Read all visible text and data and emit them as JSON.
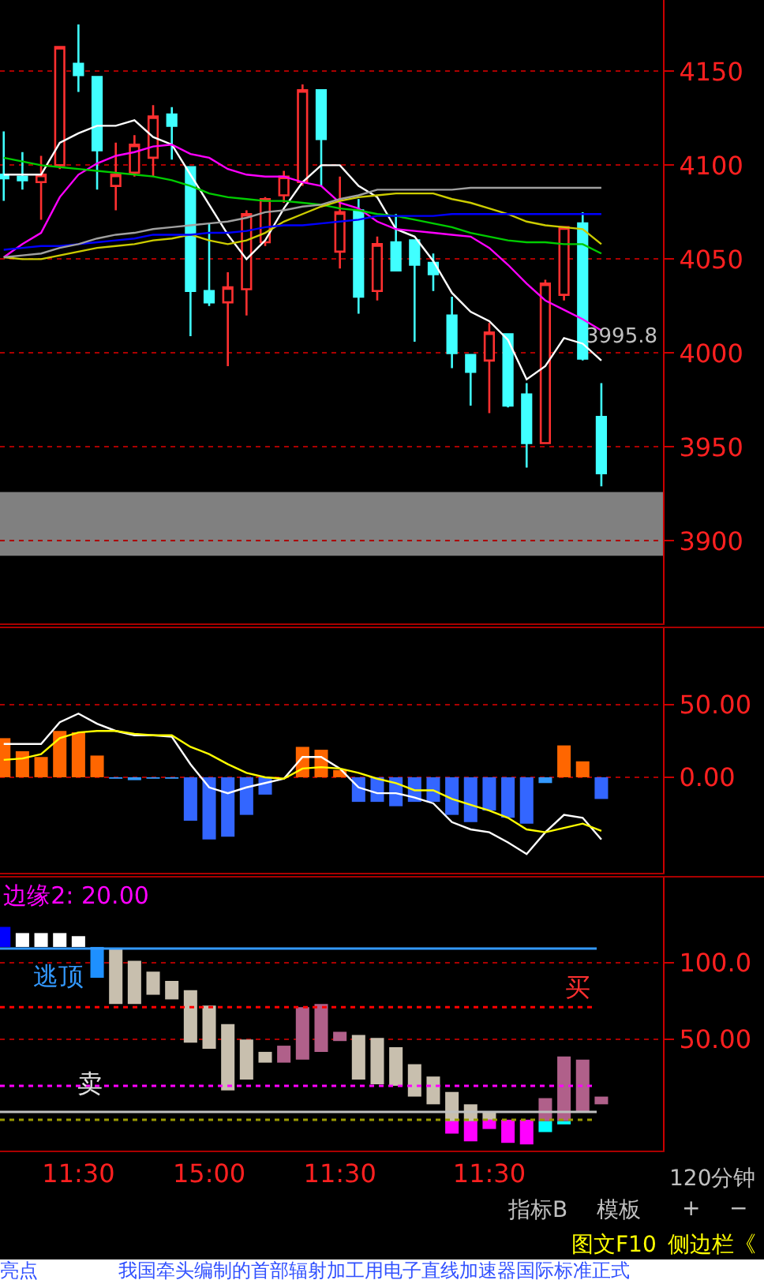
{
  "chart_data": [
    {
      "type": "candlestick",
      "categories": [
        null,
        null,
        null,
        null,
        null,
        null,
        null,
        null,
        null,
        null,
        null,
        null,
        null,
        null,
        null,
        null,
        null,
        null,
        null,
        null,
        null,
        null,
        null,
        null,
        null,
        null,
        null,
        null,
        null,
        null,
        null,
        null,
        null
      ],
      "ohlc": [
        [
          4095,
          4118,
          4081,
          4093
        ],
        [
          4094,
          4107,
          4087,
          4092
        ],
        [
          4091,
          4105,
          4071,
          4095
        ],
        [
          4100,
          4163,
          4098,
          4163
        ],
        [
          4154,
          4175,
          4139,
          4148
        ],
        [
          4147,
          4147,
          4087,
          4108
        ],
        [
          4089,
          4112,
          4076,
          4095
        ],
        [
          4096,
          4116,
          4094,
          4111
        ],
        [
          4104,
          4132,
          4094,
          4126
        ],
        [
          4127,
          4131,
          4103,
          4121
        ],
        [
          4099,
          4099,
          4009,
          4033
        ],
        [
          4033,
          4069,
          4025,
          4027
        ],
        [
          4027,
          4043,
          3993,
          4035
        ],
        [
          4034,
          4076,
          4020,
          4074
        ],
        [
          4059,
          4083,
          4057,
          4082
        ],
        [
          4084,
          4097,
          4080,
          4094
        ],
        [
          4091,
          4143,
          4089,
          4140
        ],
        [
          4140,
          4140,
          4089,
          4114
        ],
        [
          4054,
          4094,
          4045,
          4075
        ],
        [
          4076,
          4082,
          4021,
          4030
        ],
        [
          4033,
          4062,
          4028,
          4058
        ],
        [
          4059,
          4074,
          4044,
          4044
        ],
        [
          4060,
          4060,
          4006,
          4047
        ],
        [
          4048,
          4053,
          4033,
          4042
        ],
        [
          4020,
          4030,
          3992,
          4000
        ],
        [
          3999,
          3999,
          3972,
          3990
        ],
        [
          3996,
          4016,
          3968,
          4011
        ],
        [
          4010,
          4010,
          3971,
          3972
        ],
        [
          3978,
          3984,
          3939,
          3952
        ],
        [
          3952,
          4039,
          3952,
          4037
        ],
        [
          4031,
          4067,
          4028,
          4067
        ],
        [
          4069,
          4075,
          3996,
          3997
        ],
        [
          3966,
          3984,
          3929,
          3936
        ]
      ],
      "series": [
        {
          "type": "line",
          "color": "#ffffff",
          "values": [
            4095,
            4095,
            4095,
            4112,
            4117,
            4121,
            4121,
            4124,
            4115,
            4111,
            4095,
            4079,
            4063,
            4050,
            4060,
            4077,
            4091,
            4100,
            4100,
            4089,
            4083,
            4066,
            4062,
            4049,
            4032,
            4022,
            4017,
            4007,
            3986,
            3993,
            4008,
            4005,
            3996
          ]
        },
        {
          "type": "line",
          "color": "#ff00ff",
          "values": [
            4051,
            4058,
            4064,
            4083,
            4095,
            4101,
            4105,
            4107,
            4110,
            4111,
            4106,
            4104,
            4098,
            4095,
            4094,
            4094,
            4091,
            4089,
            4080,
            4077,
            4070,
            4066,
            4065,
            4064,
            4063,
            4062,
            4056,
            4047,
            4037,
            4028,
            4023,
            4018,
            4012
          ]
        },
        {
          "type": "line",
          "color": "#00cc00",
          "values": [
            4104,
            4102,
            4100,
            4099,
            4098,
            4097,
            4096,
            4095,
            4094,
            4092,
            4089,
            4085,
            4083,
            4082,
            4081,
            4081,
            4080,
            4079,
            4077,
            4076,
            4074,
            4073,
            4071,
            4069,
            4067,
            4064,
            4062,
            4060,
            4059,
            4059,
            4058,
            4058,
            4053
          ]
        },
        {
          "type": "line",
          "color": "#cccc00",
          "values": [
            4051,
            4050,
            4050,
            4052,
            4054,
            4056,
            4057,
            4058,
            4060,
            4061,
            4063,
            4060,
            4058,
            4060,
            4064,
            4070,
            4074,
            4078,
            4081,
            4083,
            4084,
            4085,
            4085,
            4085,
            4082,
            4080,
            4077,
            4074,
            4070,
            4068,
            4067,
            4066,
            4058
          ]
        },
        {
          "type": "line",
          "color": "#0000ff",
          "values": [
            4055,
            4056,
            4057,
            4057,
            4058,
            4059,
            4060,
            4061,
            4063,
            4063,
            4063,
            4064,
            4064,
            4065,
            4067,
            4068,
            4068,
            4069,
            4070,
            4071,
            4073,
            4073,
            4073,
            4073,
            4074,
            4074,
            4074,
            4074,
            4074,
            4074,
            4074,
            4074,
            4074
          ]
        },
        {
          "type": "line",
          "color": "#a0a0a0",
          "values": [
            4051,
            4052,
            4053,
            4056,
            4058,
            4061,
            4063,
            4064,
            4066,
            4067,
            4068,
            4069,
            4070,
            4072,
            4075,
            4076,
            4078,
            4079,
            4082,
            4084,
            4087,
            4087,
            4087,
            4087,
            4087,
            4088,
            4088,
            4088,
            4088,
            4088,
            4088,
            4088,
            4088
          ]
        }
      ],
      "ylim": [
        3856,
        4188
      ],
      "yticks": [
        3900,
        3950,
        4000,
        4050,
        4100,
        4150
      ],
      "grid": "y",
      "tick_labels": "y",
      "legend": false,
      "bands": [
        {
          "axis": "y",
          "from": 3892,
          "to": 3926,
          "color": "#808080"
        }
      ],
      "annotations": [
        "3995.8"
      ]
    },
    {
      "type": "bar",
      "categories": [
        null,
        null,
        null,
        null,
        null,
        null,
        null,
        null,
        null,
        null,
        null,
        null,
        null,
        null,
        null,
        null,
        null,
        null,
        null,
        null,
        null,
        null,
        null,
        null,
        null,
        null,
        null,
        null,
        null,
        null,
        null,
        null,
        null
      ],
      "series": [
        {
          "type": "bar",
          "values": [
            27,
            18,
            14,
            32,
            31,
            15,
            -1,
            -2,
            -1,
            -1,
            -30,
            -43,
            -41,
            -26,
            -12,
            null,
            21,
            19,
            5,
            -17,
            -17,
            -20,
            -17,
            -17,
            -26,
            -31,
            -23,
            -28,
            -32,
            -4,
            22,
            11,
            -15
          ],
          "colors": [
            "#ff6600",
            "#ff6600",
            "#ff6600",
            "#ff6600",
            "#ff6600",
            "#ff6600",
            "#3399ff",
            "#3399ff",
            "#3399ff",
            "#3399ff",
            "#3366ff",
            "#3366ff",
            "#3366ff",
            "#3366ff",
            "#3366ff",
            "#3399ff",
            "#ff6600",
            "#ff6600",
            "#ff6600",
            "#3366ff",
            "#3366ff",
            "#3366ff",
            "#3366ff",
            "#3366ff",
            "#3366ff",
            "#3366ff",
            "#3366ff",
            "#3366ff",
            "#3366ff",
            "#3399ff",
            "#ff6600",
            "#ff6600",
            "#3366ff"
          ]
        },
        {
          "type": "line",
          "color": "#ffffff",
          "values": [
            23,
            23,
            23,
            38,
            44,
            37,
            32,
            29,
            29,
            28,
            9,
            -7,
            -11,
            -7,
            -4,
            -1,
            14,
            14,
            6,
            -7,
            -11,
            -11,
            -14,
            -18,
            -31,
            -36,
            -38,
            -45,
            -53,
            -38,
            -26,
            -28,
            -43
          ]
        },
        {
          "type": "line",
          "color": "#ffff00",
          "values": [
            12,
            13,
            16,
            27,
            31,
            32,
            32,
            30,
            29,
            29,
            21,
            16,
            9,
            3,
            0,
            -1,
            6,
            7,
            6,
            3,
            -1,
            -4,
            -9,
            -9,
            -15,
            -19,
            -23,
            -28,
            -36,
            -38,
            -35,
            -32,
            -37
          ]
        }
      ],
      "ylim": [
        -66,
        103
      ],
      "yticks": [
        {
          "value": 0,
          "label": "0.00"
        },
        {
          "value": 50,
          "label": "50.00"
        }
      ],
      "grid": "y",
      "tick_labels": "y",
      "legend": false
    },
    {
      "type": "bar",
      "title": "边缘2: 20.00",
      "categories": [
        null,
        null,
        null,
        null,
        "11:30",
        null,
        null,
        null,
        null,
        null,
        null,
        "15:00",
        null,
        null,
        null,
        null,
        null,
        null,
        "11:30",
        null,
        null,
        null,
        null,
        null,
        null,
        null,
        "11:30",
        null,
        null,
        null,
        null,
        null,
        null
      ],
      "series": [
        {
          "type": "bar",
          "base": [
            110,
            110,
            110,
            110,
            110,
            90,
            73,
            73,
            79,
            76,
            48,
            44,
            17,
            24,
            35,
            35,
            37,
            42,
            49,
            24,
            21,
            20,
            13,
            8,
            -3,
            -3,
            -2,
            null,
            null,
            -3,
            -3,
            3,
            8
          ],
          "values": [
            13,
            9,
            9,
            9,
            7,
            20,
            36,
            28,
            15,
            12,
            34,
            28,
            43,
            26,
            7,
            11,
            34,
            31,
            6,
            29,
            30,
            25,
            21,
            18,
            19,
            11,
            5,
            null,
            null,
            15,
            42,
            34,
            5
          ],
          "colors": [
            "#0000ff",
            "#ffffff",
            "#ffffff",
            "#ffffff",
            "#ffffff",
            "#1e90ff",
            "#c8bfae",
            "#c8bfae",
            "#c8bfae",
            "#c8bfae",
            "#c8bfae",
            "#c8bfae",
            "#c8bfae",
            "#c8bfae",
            "#c8bfae",
            "#b0608a",
            "#b0608a",
            "#b0608a",
            "#b0608a",
            "#c8bfae",
            "#c8bfae",
            "#c8bfae",
            "#c8bfae",
            "#c8bfae",
            "#c8bfae",
            "#c8bfae",
            "#c8bfae",
            "#c8bfae",
            "#c8bfae",
            "#b0608a",
            "#b0608a",
            "#b0608a",
            "#b0608a"
          ]
        },
        {
          "type": "bar",
          "base": [
            null,
            null,
            null,
            null,
            null,
            null,
            null,
            null,
            null,
            null,
            null,
            null,
            null,
            null,
            null,
            null,
            null,
            null,
            null,
            null,
            null,
            null,
            null,
            null,
            -11,
            -16,
            -8,
            -17,
            -18,
            -10,
            -5,
            null,
            null
          ],
          "values": [
            null,
            null,
            null,
            null,
            null,
            null,
            null,
            null,
            null,
            null,
            null,
            null,
            null,
            null,
            null,
            null,
            null,
            null,
            null,
            null,
            null,
            null,
            null,
            null,
            8,
            13,
            6,
            15,
            16,
            7,
            2,
            null,
            null
          ],
          "colors": [
            null,
            null,
            null,
            null,
            null,
            null,
            null,
            null,
            null,
            null,
            null,
            null,
            null,
            null,
            null,
            null,
            null,
            null,
            null,
            null,
            null,
            null,
            null,
            null,
            "#ff00ff",
            "#ff00ff",
            "#ff00ff",
            "#ff00ff",
            "#ff00ff",
            "#00ffff",
            "#00ffff",
            null,
            null
          ]
        }
      ],
      "ylim": [
        -22,
        155
      ],
      "yticks": [
        {
          "value": 50,
          "label": "50.00"
        },
        {
          "value": 100,
          "label": "100.0"
        }
      ],
      "grid": "y",
      "legend": false,
      "ref_lines": [
        {
          "axis": "y",
          "value": 109,
          "color": "#3399ff",
          "line_style": "solid"
        },
        {
          "axis": "y",
          "value": 71,
          "color": "#ff0000",
          "line_style": "dotted"
        },
        {
          "axis": "y",
          "value": 20,
          "color": "#ff00ff",
          "line_style": "dotted"
        },
        {
          "axis": "y",
          "value": 3,
          "color": "#c0c0c0",
          "line_style": "solid"
        },
        {
          "axis": "y",
          "value": -2,
          "color": "#999900",
          "line_style": "dotted"
        }
      ],
      "annotations": [
        "逃顶",
        "卖",
        "买"
      ]
    },
    {
      "type": "other",
      "annotations": [
        "120分钟",
        "指标B",
        "模板",
        "+",
        "−",
        "图文F10",
        "侧边栏《",
        "亮点",
        "我国牵头编制的首部辐射加工用电子直线加速器国际标准正式"
      ]
    }
  ]
}
